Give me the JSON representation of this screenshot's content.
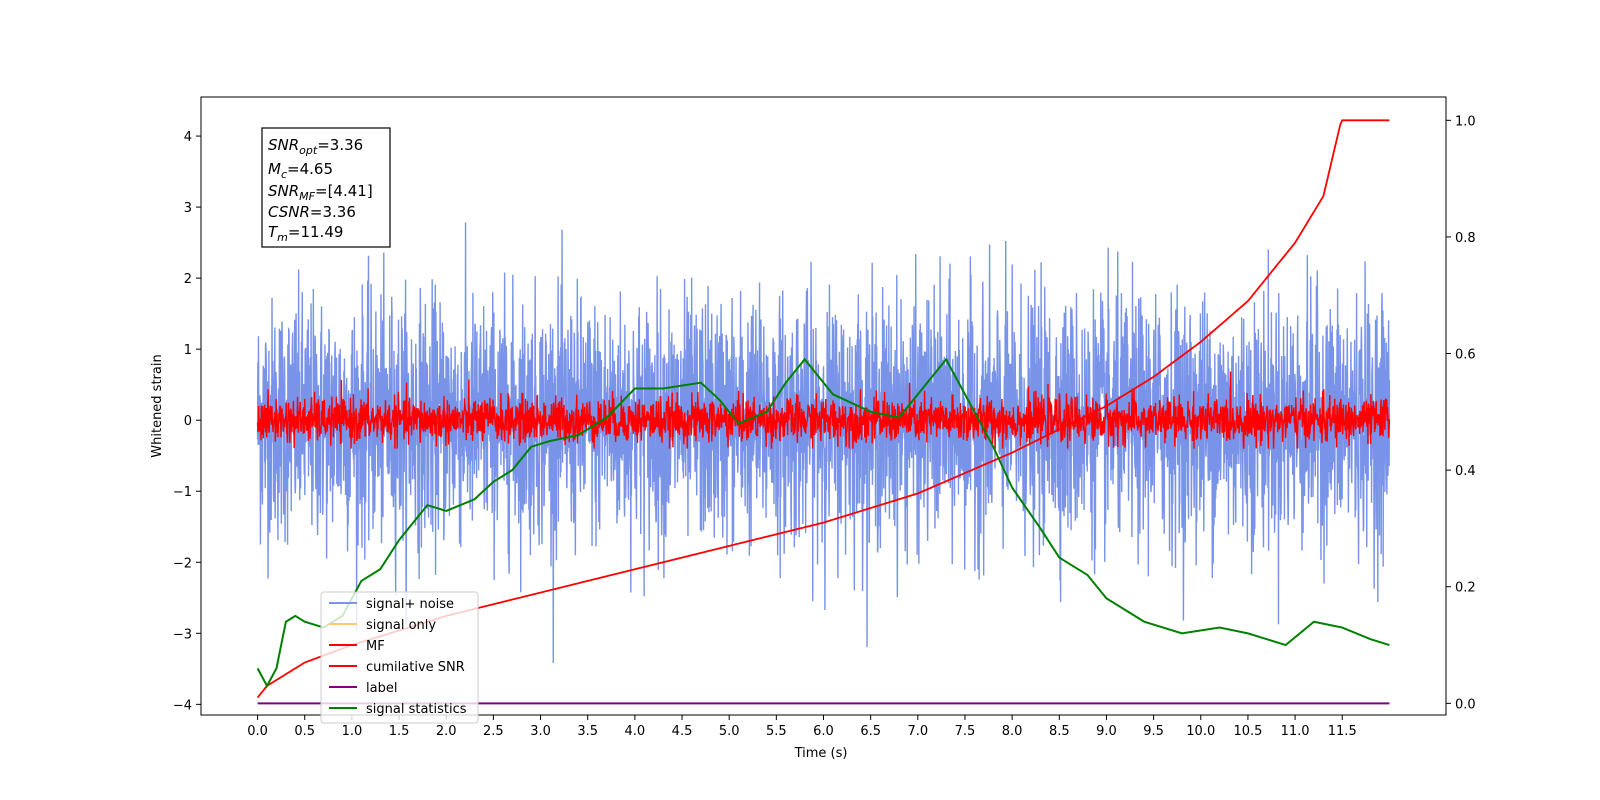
{
  "chart_data": {
    "type": "line",
    "xlabel": "Time (s)",
    "ylabel": "Whitened strain",
    "xlim": [
      -0.6,
      12.6
    ],
    "ylim": [
      -4.15,
      4.55
    ],
    "y2lim": [
      -0.02,
      1.04
    ],
    "x_ticks": [
      "0.0",
      "0.5",
      "1.0",
      "1.5",
      "2.0",
      "2.5",
      "3.0",
      "3.5",
      "4.0",
      "4.5",
      "5.0",
      "5.5",
      "6.0",
      "6.5",
      "7.0",
      "7.5",
      "8.0",
      "8.5",
      "9.0",
      "9.5",
      "10.0",
      "10.5",
      "11.0",
      "11.5"
    ],
    "y_ticks": [
      "4",
      "3",
      "2",
      "1",
      "0",
      "−1",
      "−2",
      "−3",
      "−4"
    ],
    "y2_ticks": [
      "1.0",
      "0.8",
      "0.6",
      "0.4",
      "0.2",
      "0.0"
    ],
    "info_box": {
      "snr_opt": "3.36",
      "mc": "4.65",
      "snr_mf": "[4.41]",
      "csnr": "3.36",
      "tm": "11.49"
    },
    "legend_location": "lower left",
    "series": [
      {
        "name": "signal+ noise",
        "color": "#7893e8",
        "axis": "left",
        "noise_std": 0.85,
        "y_range_approx": [
          -3.7,
          3.3
        ]
      },
      {
        "name": "signal only",
        "color": "#ffc870",
        "axis": "left",
        "values": []
      },
      {
        "name": "MF",
        "color": "#ff0000",
        "axis": "left",
        "noise_std": 0.16,
        "y_range_approx": [
          -0.4,
          1.0
        ]
      },
      {
        "name": "cumilative SNR",
        "color": "#ff0000",
        "axis": "right",
        "x": [
          0.0,
          0.1,
          0.5,
          1.0,
          2.0,
          3.0,
          4.0,
          5.0,
          6.0,
          7.0,
          8.0,
          8.5,
          9.0,
          9.5,
          10.0,
          10.5,
          11.0,
          11.3,
          11.49,
          11.5,
          12.0
        ],
        "values": [
          0.01,
          0.03,
          0.07,
          0.1,
          0.15,
          0.19,
          0.23,
          0.27,
          0.31,
          0.36,
          0.43,
          0.47,
          0.51,
          0.56,
          0.62,
          0.69,
          0.79,
          0.87,
          1.0,
          1.0,
          1.0
        ]
      },
      {
        "name": "label",
        "color": "#800080",
        "axis": "right",
        "x": [
          0.0,
          12.0
        ],
        "values": [
          0.0,
          0.0
        ]
      },
      {
        "name": "signal statistics",
        "color": "#008000",
        "axis": "right",
        "x": [
          0.0,
          0.1,
          0.2,
          0.3,
          0.4,
          0.5,
          0.7,
          0.9,
          1.1,
          1.3,
          1.5,
          1.7,
          1.8,
          2.0,
          2.3,
          2.5,
          2.7,
          2.9,
          3.1,
          3.4,
          3.7,
          4.0,
          4.3,
          4.7,
          4.9,
          5.1,
          5.4,
          5.6,
          5.8,
          6.1,
          6.5,
          6.8,
          7.0,
          7.3,
          7.5,
          7.8,
          8.0,
          8.3,
          8.5,
          8.8,
          9.0,
          9.4,
          9.8,
          10.2,
          10.5,
          10.9,
          11.2,
          11.5,
          11.8,
          12.0
        ],
        "values": [
          0.06,
          0.03,
          0.06,
          0.14,
          0.15,
          0.14,
          0.13,
          0.15,
          0.21,
          0.23,
          0.28,
          0.32,
          0.34,
          0.33,
          0.35,
          0.38,
          0.4,
          0.44,
          0.45,
          0.46,
          0.49,
          0.54,
          0.54,
          0.55,
          0.52,
          0.48,
          0.5,
          0.55,
          0.59,
          0.53,
          0.5,
          0.49,
          0.53,
          0.59,
          0.53,
          0.44,
          0.37,
          0.3,
          0.25,
          0.22,
          0.18,
          0.14,
          0.12,
          0.13,
          0.12,
          0.1,
          0.14,
          0.13,
          0.11,
          0.1
        ]
      }
    ]
  }
}
